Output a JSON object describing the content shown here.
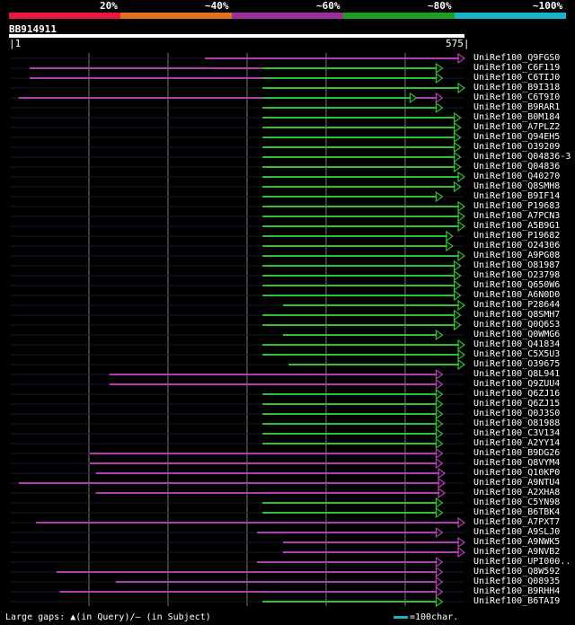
{
  "legend": [
    {
      "label": "20%",
      "color": "#e8193c"
    },
    {
      "label": "~40%",
      "color": "#e6701c"
    },
    {
      "label": "~60%",
      "color": "#9b2f9b"
    },
    {
      "label": "~80%",
      "color": "#1e9e1e"
    },
    {
      "label": "~100%",
      "color": "#19b3c8"
    }
  ],
  "query": {
    "id": "BB914911",
    "start": "1",
    "end": "575",
    "length": 575
  },
  "colors": {
    "purple": "#b33eb3",
    "green": "#2fbf2f",
    "grid": "#777777",
    "gap": "#555555"
  },
  "hits": [
    {
      "name": "UniRef100_Q9FGS0",
      "color": "purple",
      "start": 246,
      "end": 575
    },
    {
      "name": "UniRef100_C6F119",
      "color": "green",
      "start": 319,
      "end": 547,
      "tail": [
        24,
        319
      ]
    },
    {
      "name": "UniRef100_C6TIJ0",
      "color": "green",
      "start": 319,
      "end": 547,
      "tail": [
        24,
        319
      ]
    },
    {
      "name": "UniRef100_B9I318",
      "color": "green",
      "start": 319,
      "end": 575
    },
    {
      "name": "UniRef100_C6T9I0",
      "color": "green",
      "start": 319,
      "end": 514,
      "tail": [
        10,
        319
      ],
      "extra": [
        514,
        547
      ]
    },
    {
      "name": "UniRef100_B9RAR1",
      "color": "green",
      "start": 319,
      "end": 547
    },
    {
      "name": "UniRef100_B0M184",
      "color": "green",
      "start": 319,
      "end": 570
    },
    {
      "name": "UniRef100_A7PLZ2",
      "color": "green",
      "start": 319,
      "end": 570
    },
    {
      "name": "UniRef100_Q94EH5",
      "color": "green",
      "start": 319,
      "end": 570
    },
    {
      "name": "UniRef100_O39209",
      "color": "green",
      "start": 319,
      "end": 570
    },
    {
      "name": "UniRef100_Q04836-3",
      "color": "green",
      "start": 319,
      "end": 570
    },
    {
      "name": "UniRef100_Q04836",
      "color": "green",
      "start": 319,
      "end": 570
    },
    {
      "name": "UniRef100_Q40270",
      "color": "green",
      "start": 319,
      "end": 575
    },
    {
      "name": "UniRef100_Q8SMH8",
      "color": "green",
      "start": 319,
      "end": 570
    },
    {
      "name": "UniRef100_B9IF14",
      "color": "green",
      "start": 319,
      "end": 547
    },
    {
      "name": "UniRef100_P19683",
      "color": "green",
      "start": 319,
      "end": 575
    },
    {
      "name": "UniRef100_A7PCN3",
      "color": "green",
      "start": 319,
      "end": 575
    },
    {
      "name": "UniRef100_A5B9G1",
      "color": "green",
      "start": 319,
      "end": 575
    },
    {
      "name": "UniRef100_P19682",
      "color": "green",
      "start": 319,
      "end": 560
    },
    {
      "name": "UniRef100_O24306",
      "color": "green",
      "start": 319,
      "end": 560
    },
    {
      "name": "UniRef100_A9PG08",
      "color": "green",
      "start": 319,
      "end": 575
    },
    {
      "name": "UniRef100_O81987",
      "color": "green",
      "start": 319,
      "end": 570
    },
    {
      "name": "UniRef100_O23798",
      "color": "green",
      "start": 319,
      "end": 570
    },
    {
      "name": "UniRef100_Q650W6",
      "color": "green",
      "start": 319,
      "end": 570
    },
    {
      "name": "UniRef100_A6N0D0",
      "color": "green",
      "start": 319,
      "end": 570
    },
    {
      "name": "UniRef100_P28644",
      "color": "green",
      "start": 345,
      "end": 575
    },
    {
      "name": "UniRef100_Q8SMH7",
      "color": "green",
      "start": 319,
      "end": 570
    },
    {
      "name": "UniRef100_Q0Q6S3",
      "color": "green",
      "start": 319,
      "end": 570
    },
    {
      "name": "UniRef100_Q0WMG6",
      "color": "green",
      "start": 345,
      "end": 547
    },
    {
      "name": "UniRef100_Q41834",
      "color": "green",
      "start": 319,
      "end": 575
    },
    {
      "name": "UniRef100_C5X5U3",
      "color": "green",
      "start": 319,
      "end": 575
    },
    {
      "name": "UniRef100_O39675",
      "color": "green",
      "start": 352,
      "end": 575
    },
    {
      "name": "UniRef100_Q8L941",
      "color": "purple",
      "start": 125,
      "end": 547
    },
    {
      "name": "UniRef100_Q9ZUU4",
      "color": "purple",
      "start": 125,
      "end": 547
    },
    {
      "name": "UniRef100_Q6ZJ16",
      "color": "green",
      "start": 319,
      "end": 547
    },
    {
      "name": "UniRef100_Q6ZJ15",
      "color": "green",
      "start": 319,
      "end": 547
    },
    {
      "name": "UniRef100_Q0J3S0",
      "color": "green",
      "start": 319,
      "end": 547
    },
    {
      "name": "UniRef100_O81988",
      "color": "green",
      "start": 319,
      "end": 547
    },
    {
      "name": "UniRef100_C3V134",
      "color": "green",
      "start": 319,
      "end": 547
    },
    {
      "name": "UniRef100_A2YY14",
      "color": "green",
      "start": 319,
      "end": 547
    },
    {
      "name": "UniRef100_B9DG26",
      "color": "purple",
      "start": 100,
      "end": 547
    },
    {
      "name": "UniRef100_Q8VYM4",
      "color": "purple",
      "start": 100,
      "end": 547
    },
    {
      "name": "UniRef100_Q10KP0",
      "color": "purple",
      "start": 108,
      "end": 550
    },
    {
      "name": "UniRef100_A9NTU4",
      "color": "purple",
      "start": 10,
      "end": 550
    },
    {
      "name": "UniRef100_A2XHA8",
      "color": "purple",
      "start": 108,
      "end": 550
    },
    {
      "name": "UniRef100_C5YN98",
      "color": "green",
      "start": 319,
      "end": 547
    },
    {
      "name": "UniRef100_B6TBK4",
      "color": "green",
      "start": 319,
      "end": 547
    },
    {
      "name": "UniRef100_A7PXT7",
      "color": "purple",
      "start": 32,
      "end": 575
    },
    {
      "name": "UniRef100_A9SLJ0",
      "color": "purple",
      "start": 312,
      "end": 547
    },
    {
      "name": "UniRef100_A9NWK5",
      "color": "purple",
      "start": 345,
      "end": 575
    },
    {
      "name": "UniRef100_A9NVB2",
      "color": "purple",
      "start": 345,
      "end": 575
    },
    {
      "name": "UniRef100_UPI000..",
      "color": "purple",
      "start": 312,
      "end": 547
    },
    {
      "name": "UniRef100_Q8W592",
      "color": "purple",
      "start": 58,
      "end": 547
    },
    {
      "name": "UniRef100_Q08935",
      "color": "purple",
      "start": 133,
      "end": 547
    },
    {
      "name": "UniRef100_B9RHH4",
      "color": "purple",
      "start": 62,
      "end": 547
    },
    {
      "name": "UniRef100_B6TAI9",
      "color": "green",
      "start": 319,
      "end": 547
    }
  ],
  "footer": {
    "text": "Large gaps: ▲(in Query)/— (in Subject)",
    "scale": "=100char."
  }
}
